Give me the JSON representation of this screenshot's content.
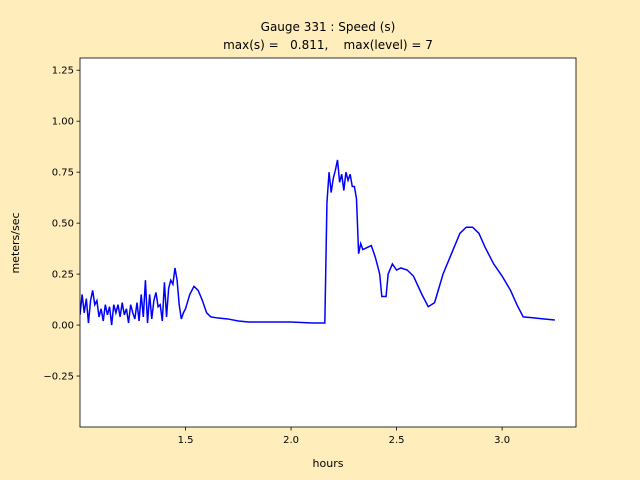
{
  "chart_data": {
    "type": "line",
    "title": "Gauge 331 : Speed (s)",
    "subtitle": "max(s) =   0.811,    max(level) = 7",
    "x_label": "hours",
    "y_label": "meters/sec",
    "xlim": [
      1.0,
      3.35
    ],
    "ylim": [
      -0.5,
      1.31
    ],
    "xticks": [
      1.5,
      {
        "value": 2.0,
        "label": "2.0"
      },
      2.5,
      {
        "value": 3.0,
        "label": "3.0"
      }
    ],
    "yticks": [
      {
        "value": -0.25,
        "label": "−0.25"
      },
      {
        "value": 0,
        "label": "0.00"
      },
      0.25,
      {
        "value": 0.5,
        "label": "0.50"
      },
      0.75,
      {
        "value": 1.0,
        "label": "1.00"
      },
      1.25
    ],
    "grid": false,
    "x": [
      1.0,
      1.01,
      1.02,
      1.03,
      1.04,
      1.05,
      1.06,
      1.07,
      1.08,
      1.09,
      1.1,
      1.11,
      1.12,
      1.13,
      1.14,
      1.15,
      1.16,
      1.17,
      1.18,
      1.19,
      1.2,
      1.21,
      1.22,
      1.23,
      1.24,
      1.25,
      1.26,
      1.27,
      1.28,
      1.29,
      1.3,
      1.31,
      1.32,
      1.33,
      1.34,
      1.35,
      1.36,
      1.37,
      1.38,
      1.39,
      1.4,
      1.41,
      1.42,
      1.43,
      1.44,
      1.45,
      1.46,
      1.47,
      1.48,
      1.49,
      1.5,
      1.52,
      1.54,
      1.56,
      1.58,
      1.6,
      1.62,
      1.65,
      1.7,
      1.75,
      1.8,
      1.9,
      2.0,
      2.1,
      2.16,
      2.17,
      2.18,
      2.19,
      2.2,
      2.21,
      2.22,
      2.23,
      2.24,
      2.25,
      2.26,
      2.27,
      2.28,
      2.29,
      2.3,
      2.31,
      2.32,
      2.33,
      2.34,
      2.36,
      2.38,
      2.4,
      2.42,
      2.43,
      2.45,
      2.46,
      2.48,
      2.5,
      2.52,
      2.55,
      2.58,
      2.62,
      2.65,
      2.68,
      2.72,
      2.76,
      2.8,
      2.83,
      2.86,
      2.89,
      2.92,
      2.96,
      3.0,
      3.04,
      3.07,
      3.1,
      3.15,
      3.2,
      3.25
    ],
    "series": [
      {
        "name": "s",
        "color": "#0000ff",
        "values": [
          0.05,
          0.15,
          0.06,
          0.13,
          0.01,
          0.12,
          0.17,
          0.1,
          0.12,
          0.04,
          0.08,
          0.02,
          0.1,
          0.05,
          0.09,
          0.0,
          0.1,
          0.06,
          0.1,
          0.04,
          0.11,
          0.05,
          0.08,
          0.01,
          0.1,
          0.06,
          0.03,
          0.11,
          0.02,
          0.15,
          0.04,
          0.22,
          0.01,
          0.15,
          0.03,
          0.12,
          0.16,
          0.09,
          0.1,
          0.02,
          0.21,
          0.04,
          0.18,
          0.22,
          0.2,
          0.28,
          0.22,
          0.1,
          0.03,
          0.06,
          0.08,
          0.15,
          0.19,
          0.17,
          0.12,
          0.06,
          0.04,
          0.035,
          0.03,
          0.02,
          0.015,
          0.015,
          0.015,
          0.01,
          0.01,
          0.6,
          0.75,
          0.65,
          0.72,
          0.76,
          0.81,
          0.7,
          0.74,
          0.66,
          0.75,
          0.71,
          0.74,
          0.68,
          0.68,
          0.62,
          0.35,
          0.4,
          0.37,
          0.38,
          0.39,
          0.33,
          0.25,
          0.14,
          0.14,
          0.25,
          0.3,
          0.27,
          0.28,
          0.27,
          0.24,
          0.15,
          0.09,
          0.11,
          0.25,
          0.35,
          0.45,
          0.48,
          0.48,
          0.45,
          0.38,
          0.3,
          0.24,
          0.17,
          0.1,
          0.04,
          0.035,
          0.03,
          0.025
        ]
      }
    ]
  }
}
